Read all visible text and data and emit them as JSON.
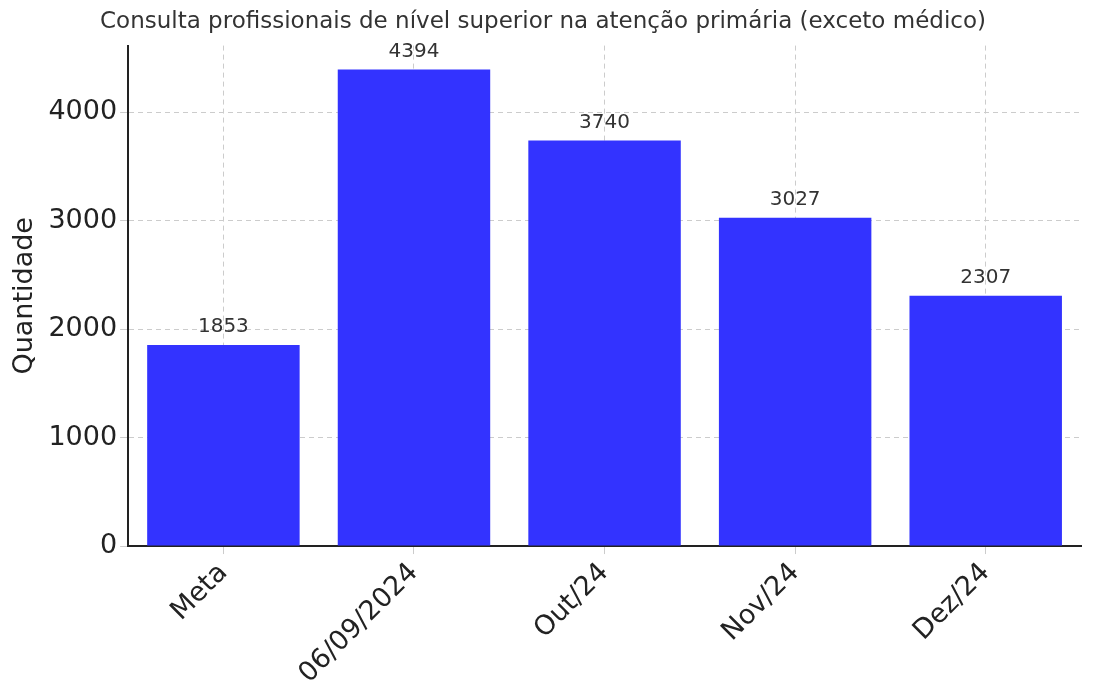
{
  "chart_data": {
    "type": "bar",
    "title": "Consulta profissionais de nível superior na atenção primária (exceto médico)",
    "ylabel": "Quantidade",
    "categories": [
      "Meta",
      "06/09/2024",
      "Out/24",
      "Nov/24",
      "Dez/24"
    ],
    "values": [
      1853,
      4394,
      3740,
      3027,
      2307
    ],
    "color": "#3333ff",
    "ylim": [
      0,
      4614
    ],
    "yticks": [
      0,
      1000,
      2000,
      3000,
      4000
    ],
    "grid": true,
    "data_labels": true
  }
}
